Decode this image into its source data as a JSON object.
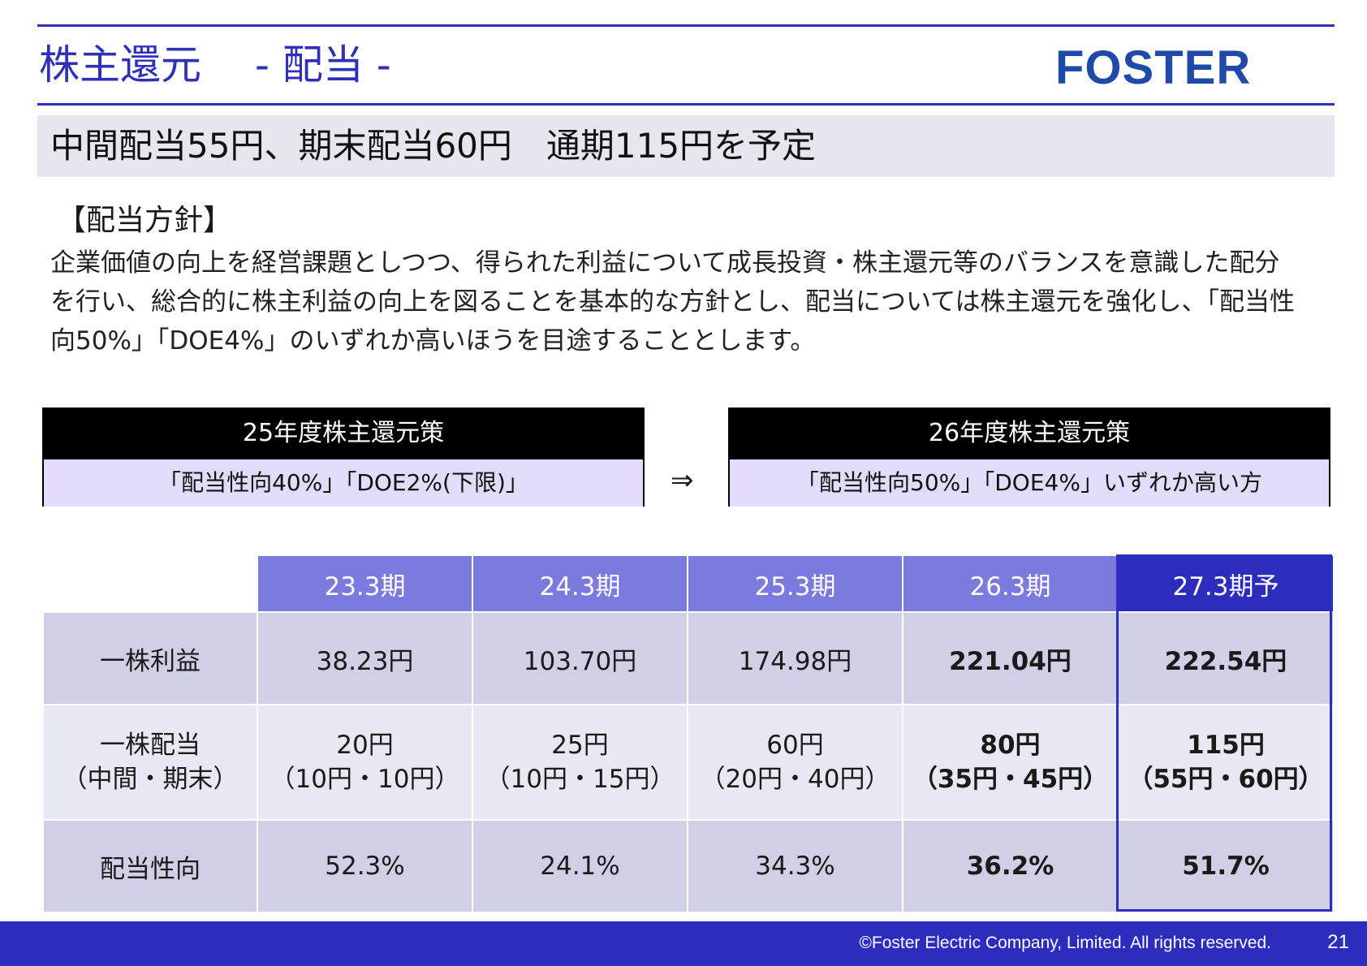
{
  "header": {
    "title": "株主還元　 - 配当 -",
    "logo_text": "FOSTER",
    "accent_color": "#2f2fb8"
  },
  "summary": {
    "text": "中間配当55円、期末配当60円　通期115円を予定"
  },
  "policy": {
    "heading": "【配当方針】",
    "text": "企業価値の向上を経営課題としつつ、得られた利益について成長投資・株主還元等のバランスを意識した配分を行い、総合的に株主利益の向上を図ることを基本的な方針とし、配当については株主還元を強化し、「配当性向50%」「DOE4%」のいずれか高いほうを目途することとします。"
  },
  "strategy": {
    "fy25": {
      "title": "25年度株主還元策",
      "body": "「配当性向40%」「DOE2%(下限)」"
    },
    "arrow": "⇒",
    "fy26": {
      "title": "26年度株主還元策",
      "body": "「配当性向50%」「DOE4%」いずれか高い方"
    }
  },
  "table": {
    "headers": [
      "23.3期",
      "24.3期",
      "25.3期",
      "26.3期",
      "27.3期予"
    ],
    "rows": {
      "eps": {
        "label": "一株利益",
        "values": [
          "38.23円",
          "103.70円",
          "174.98円",
          "221.04円",
          "222.54円"
        ]
      },
      "dps": {
        "label": "一株配当",
        "label_sub": "（中間・期末）",
        "values": [
          "20円",
          "25円",
          "60円",
          "80円",
          "115円"
        ],
        "subs": [
          "（10円・10円）",
          "（10円・15円）",
          "（20円・40円）",
          "（35円・45円）",
          "（55円・60円）"
        ]
      },
      "payout": {
        "label": "配当性向",
        "values": [
          "52.3%",
          "24.1%",
          "34.3%",
          "36.2%",
          "51.7%"
        ]
      }
    }
  },
  "footer": {
    "copyright": "©Foster Electric Company, Limited. All rights reserved.",
    "page_number": "21"
  }
}
